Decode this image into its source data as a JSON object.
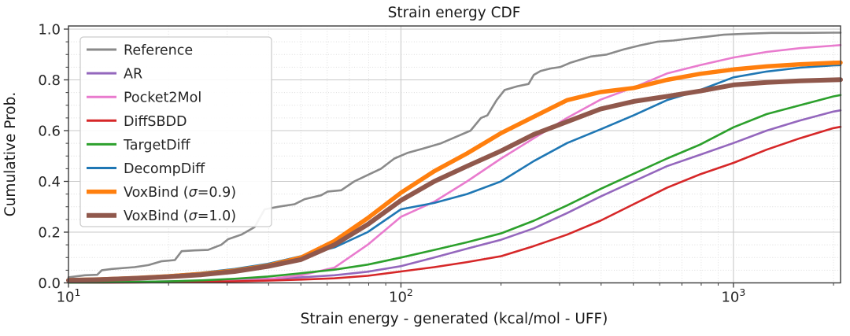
{
  "title": "Strain energy CDF",
  "xlabel": "Strain energy - generated (kcal/mol - UFF)",
  "ylabel": "Cumulative Prob.",
  "colors": {
    "background": "#ffffff",
    "text": "#262626",
    "spine": "#3a3a3a",
    "grid_major": "#c9c9c9",
    "grid_minor": "#dcdcdc",
    "legend_border": "#cccccc",
    "legend_bg": "#ffffff"
  },
  "axes": {
    "x_ticks": [
      {
        "base": "10",
        "exponent": "1",
        "value": 10
      },
      {
        "base": "10",
        "exponent": "2",
        "value": 100
      },
      {
        "base": "10",
        "exponent": "3",
        "value": 1000
      }
    ],
    "y_ticks": [
      {
        "label": "0.0",
        "value": 0.0
      },
      {
        "label": "0.2",
        "value": 0.2
      },
      {
        "label": "0.4",
        "value": 0.4
      },
      {
        "label": "0.6",
        "value": 0.6
      },
      {
        "label": "0.8",
        "value": 0.8
      },
      {
        "label": "1.0",
        "value": 1.0
      }
    ]
  },
  "chart_data": {
    "type": "line",
    "title": "Strain energy CDF",
    "xlabel": "Strain energy - generated (kcal/mol - UFF)",
    "ylabel": "Cumulative Prob.",
    "x_scale": "log",
    "xlim": [
      10,
      2100
    ],
    "ylim": [
      0,
      1.012
    ],
    "grid": true,
    "legend_position": "upper left",
    "x": [
      10,
      12.6,
      15.8,
      20,
      25.1,
      31.6,
      39.8,
      50.1,
      63.1,
      79.4,
      100,
      126,
      158,
      200,
      251,
      316,
      398,
      501,
      631,
      794,
      1000,
      1259,
      1585,
      2000,
      2100
    ],
    "series": [
      {
        "name": "Reference",
        "color": "#8a8a8a",
        "width": 2.6,
        "x": [
          10,
          11.2,
          12.2,
          12.6,
          13.5,
          15.8,
          17.4,
          19,
          20.9,
          21.9,
          24,
          26.3,
          28.8,
          30.2,
          33.1,
          36.3,
          38.9,
          42.7,
          47.9,
          51.3,
          57.5,
          60.3,
          66.1,
          72.4,
          79.4,
          87.1,
          95.5,
          105,
          117,
          132,
          148,
          162,
          174,
          182,
          194,
          205,
          224,
          242,
          251,
          263,
          282,
          302,
          324,
          347,
          373,
          416,
          468,
          524,
          589,
          660,
          740,
          830,
          935,
          1100,
          1300,
          1600,
          2000,
          2100
        ],
        "y": [
          0.022,
          0.03,
          0.032,
          0.05,
          0.055,
          0.062,
          0.07,
          0.085,
          0.09,
          0.125,
          0.128,
          0.13,
          0.15,
          0.172,
          0.19,
          0.22,
          0.29,
          0.3,
          0.31,
          0.33,
          0.345,
          0.36,
          0.365,
          0.4,
          0.425,
          0.45,
          0.49,
          0.513,
          0.53,
          0.55,
          0.578,
          0.6,
          0.65,
          0.66,
          0.72,
          0.76,
          0.775,
          0.784,
          0.82,
          0.835,
          0.845,
          0.851,
          0.868,
          0.88,
          0.892,
          0.9,
          0.92,
          0.936,
          0.95,
          0.955,
          0.963,
          0.97,
          0.978,
          0.982,
          0.985,
          0.985,
          0.986,
          0.986
        ]
      },
      {
        "name": "AR",
        "color": "#9467bd",
        "width": 2.6,
        "y": [
          0.002,
          0.003,
          0.004,
          0.006,
          0.008,
          0.012,
          0.016,
          0.022,
          0.03,
          0.044,
          0.066,
          0.1,
          0.135,
          0.17,
          0.215,
          0.275,
          0.34,
          0.4,
          0.46,
          0.505,
          0.551,
          0.6,
          0.64,
          0.675,
          0.68
        ]
      },
      {
        "name": "Pocket2Mol",
        "color": "#e97bce",
        "width": 2.6,
        "y": [
          0.001,
          0.002,
          0.003,
          0.004,
          0.006,
          0.009,
          0.015,
          0.03,
          0.06,
          0.15,
          0.26,
          0.32,
          0.4,
          0.49,
          0.57,
          0.65,
          0.722,
          0.77,
          0.825,
          0.858,
          0.888,
          0.91,
          0.925,
          0.935,
          0.937
        ]
      },
      {
        "name": "DiffSBDD",
        "color": "#d62728",
        "width": 2.6,
        "y": [
          0.001,
          0.001,
          0.002,
          0.003,
          0.004,
          0.006,
          0.009,
          0.013,
          0.018,
          0.028,
          0.045,
          0.062,
          0.082,
          0.105,
          0.145,
          0.19,
          0.245,
          0.31,
          0.375,
          0.428,
          0.473,
          0.525,
          0.57,
          0.61,
          0.615
        ]
      },
      {
        "name": "TargetDiff",
        "color": "#2ca02c",
        "width": 2.6,
        "y": [
          0.001,
          0.002,
          0.004,
          0.006,
          0.01,
          0.016,
          0.025,
          0.038,
          0.052,
          0.072,
          0.1,
          0.13,
          0.16,
          0.195,
          0.245,
          0.305,
          0.37,
          0.43,
          0.49,
          0.545,
          0.613,
          0.665,
          0.7,
          0.735,
          0.74
        ]
      },
      {
        "name": "DecompDiff",
        "color": "#1f77b4",
        "width": 2.6,
        "y": [
          0.012,
          0.016,
          0.022,
          0.03,
          0.04,
          0.055,
          0.075,
          0.105,
          0.14,
          0.2,
          0.29,
          0.315,
          0.35,
          0.4,
          0.48,
          0.551,
          0.605,
          0.66,
          0.72,
          0.76,
          0.81,
          0.833,
          0.848,
          0.857,
          0.858
        ]
      },
      {
        "name": "VoxBind (σ=0.9)",
        "color": "#ff7f0e",
        "width": 5.5,
        "y": [
          0.011,
          0.014,
          0.019,
          0.026,
          0.035,
          0.048,
          0.068,
          0.1,
          0.165,
          0.255,
          0.355,
          0.44,
          0.51,
          0.59,
          0.655,
          0.72,
          0.752,
          0.768,
          0.8,
          0.824,
          0.841,
          0.853,
          0.861,
          0.867,
          0.868
        ]
      },
      {
        "name": "VoxBind (σ=1.0)",
        "color": "#90584c",
        "width": 6,
        "y": [
          0.01,
          0.013,
          0.018,
          0.024,
          0.032,
          0.045,
          0.065,
          0.092,
          0.15,
          0.23,
          0.325,
          0.4,
          0.46,
          0.52,
          0.585,
          0.635,
          0.685,
          0.715,
          0.735,
          0.756,
          0.78,
          0.79,
          0.796,
          0.8,
          0.801
        ]
      }
    ]
  }
}
